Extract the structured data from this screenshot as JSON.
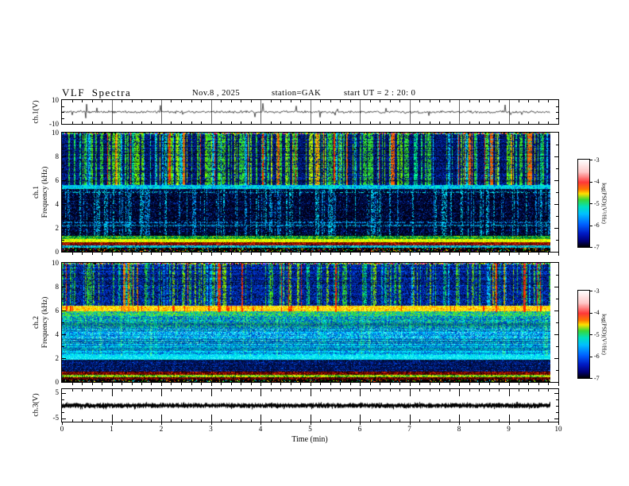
{
  "header": {
    "title": "VLF Spectra",
    "date": "Nov.8 , 2025",
    "station": "station=GAK",
    "start_ut": "start UT =  2 : 20: 0"
  },
  "axes": {
    "time_label": "Time  (min)",
    "time_ticks": [
      0,
      1,
      2,
      3,
      4,
      5,
      6,
      7,
      8,
      9,
      10
    ],
    "freq_ticks": [
      10,
      8,
      6,
      4,
      2,
      0
    ],
    "ch1v_ticks": [
      10,
      -10
    ],
    "ch3v_ticks": [
      5,
      -5
    ],
    "ch1_label": "ch.1(V)",
    "spec1_label_line1": "ch.1",
    "spec1_label_line2": "Frequency  (kHz)",
    "spec2_label_line1": "ch.2",
    "spec2_label_line2": "Frequency  (kHz)",
    "ch3_label": "ch.3(V)"
  },
  "colorbar": {
    "label": "log(PSD)(V²/Hz)",
    "ticks": [
      "-3",
      "-4",
      "-5",
      "-6",
      "-7"
    ],
    "gradient": [
      [
        "0%",
        "#ffffff"
      ],
      [
        "14%",
        "#ffc8c8"
      ],
      [
        "26%",
        "#ff3838"
      ],
      [
        "34%",
        "#ff7800"
      ],
      [
        "39%",
        "#ffe000"
      ],
      [
        "46%",
        "#38d838"
      ],
      [
        "54%",
        "#00e0c0"
      ],
      [
        "62%",
        "#00c0ff"
      ],
      [
        "74%",
        "#0060ff"
      ],
      [
        "85%",
        "#0018c0"
      ],
      [
        "93%",
        "#000078"
      ],
      [
        "100%",
        "#000000"
      ]
    ]
  },
  "chart_data": [
    {
      "type": "line",
      "channel": "ch.1(V)",
      "xlabel": "Time (min)",
      "xlim": [
        0,
        10
      ],
      "ylim": [
        -10,
        10
      ],
      "data_end_min": 9.84,
      "description": "broadband noise around 0 V, ~±1.5 V, with sparse spikes up to ~±8 V",
      "noise_v": 0.9,
      "seed": 7
    },
    {
      "type": "heatmap",
      "channel": "ch.1",
      "ylabel": "Frequency (kHz)",
      "ylim": [
        0,
        10
      ],
      "xlim": [
        0,
        10
      ],
      "zlabel": "log(PSD)(V²/Hz)",
      "zlim": [
        -7,
        -3
      ],
      "seed": 42,
      "carry": 0.38,
      "bands": [
        {
          "f": [
            9.87,
            10.01
          ],
          "colors": [
            [
              "#ff4000",
              1
            ],
            [
              "#ffe000",
              1
            ],
            [
              "#30d030",
              1
            ],
            [
              "#00d0ff",
              1
            ],
            [
              "#2040ff",
              1
            ],
            [
              "#000000",
              1.5
            ],
            [
              "#ff00ff",
              0.5
            ]
          ]
        },
        {
          "f": [
            5.62,
            9.87
          ],
          "rowmod": true,
          "colors": [
            [
              "#001878",
              5
            ],
            [
              "#0030c0",
              2
            ],
            [
              "#000428",
              3
            ]
          ]
        },
        {
          "f": [
            5.27,
            5.62
          ],
          "colors": [
            [
              "#00e0e0",
              4.5
            ],
            [
              "#00b4ff",
              2.5
            ],
            [
              "#00ffb4",
              1.5
            ],
            [
              "#0050e0",
              1.5
            ]
          ]
        },
        {
          "f": [
            1.32,
            5.27
          ],
          "rowmod": true,
          "colors": [
            [
              "#000014",
              5
            ],
            [
              "#000a3c",
              3
            ],
            [
              "#001e82",
              1.6
            ],
            [
              "#0050d2",
              0.4
            ]
          ]
        },
        {
          "f": [
            1.05,
            1.32
          ],
          "colors": [
            [
              "#00c050",
              3
            ],
            [
              "#008c3c",
              2.5
            ],
            [
              "#004020",
              2
            ],
            [
              "#96e000",
              2.5
            ]
          ]
        },
        {
          "f": [
            0.78,
            1.05
          ],
          "colors": [
            [
              "#ffff00",
              4
            ],
            [
              "#d2ff00",
              3
            ],
            [
              "#8ce000",
              2
            ],
            [
              "#ffb400",
              1
            ]
          ]
        },
        {
          "f": [
            0.55,
            0.78
          ],
          "colors": [
            [
              "#820000",
              4.5
            ],
            [
              "#b41e00",
              2.5
            ],
            [
              "#320000",
              2
            ],
            [
              "#ff4600",
              1
            ]
          ]
        },
        {
          "f": [
            0.33,
            0.55
          ],
          "colors": [
            [
              "#00d2d2",
              4
            ],
            [
              "#00a0e0",
              2.5
            ],
            [
              "#003c8c",
              2
            ],
            [
              "#46ffd2",
              1.5
            ]
          ]
        },
        {
          "f": [
            -0.01,
            0.33
          ],
          "colors": [
            [
              "#000000",
              8
            ],
            [
              "#ff3200",
              0.5
            ],
            [
              "#ffe000",
              0.5
            ],
            [
              "#00e000",
              0.4
            ],
            [
              "#00c8ff",
              0.4
            ],
            [
              "#3c00aa",
              0.4
            ]
          ]
        }
      ],
      "streaks": [
        {
          "f": [
            5.62,
            9.92
          ],
          "density": 0.5,
          "fill": 0.72,
          "palette": [
            [
              "#2ed22e",
              4.5
            ],
            [
              "#64e600",
              1.5
            ],
            [
              "#00e682",
              1.5
            ],
            [
              "#aaf000",
              1
            ],
            [
              "#00c8ff",
              1.5
            ]
          ]
        },
        {
          "f": [
            5.62,
            9.92
          ],
          "density": 0.05,
          "fill": 0.8,
          "palette": [
            [
              "#ff6400",
              2
            ],
            [
              "#ff2800",
              2
            ],
            [
              "#ffaa00",
              1
            ]
          ]
        },
        {
          "f": [
            1.32,
            5.27
          ],
          "density": 0.3,
          "fill": 0.45,
          "palette": [
            [
              "#00c8e6",
              3
            ],
            [
              "#0096e6",
              2
            ]
          ]
        }
      ],
      "hlines": [
        {
          "f": 2.2,
          "color": "#00b4e6",
          "fill": 0.55
        },
        {
          "f": 2.45,
          "color": "#0096e0",
          "fill": 0.4
        },
        {
          "f": 5.02,
          "color": "#00c8e6",
          "fill": 0.3
        }
      ]
    },
    {
      "type": "heatmap",
      "channel": "ch.2",
      "ylabel": "Frequency (kHz)",
      "ylim": [
        0,
        10
      ],
      "xlim": [
        0,
        10
      ],
      "zlabel": "log(PSD)(V²/Hz)",
      "zlim": [
        -7,
        -3
      ],
      "seed": 77,
      "carry": 0.35,
      "bands": [
        {
          "f": [
            9.87,
            10.01
          ],
          "colors": [
            [
              "#ff4000",
              1
            ],
            [
              "#ffe000",
              1
            ],
            [
              "#30d030",
              1
            ],
            [
              "#00d0ff",
              1
            ],
            [
              "#2040ff",
              1
            ],
            [
              "#000000",
              1.5
            ],
            [
              "#ff00ff",
              0.5
            ]
          ]
        },
        {
          "f": [
            6.42,
            9.87
          ],
          "rowmod": true,
          "colors": [
            [
              "#0022aa",
              4.5
            ],
            [
              "#003cd2",
              2
            ],
            [
              "#000a32",
              3
            ],
            [
              "#0064e6",
              0.8
            ]
          ]
        },
        {
          "f": [
            5.95,
            6.42
          ],
          "colors": [
            [
              "#ffe000",
              4
            ],
            [
              "#ffff46",
              2
            ],
            [
              "#ffaa00",
              2.5
            ],
            [
              "#ff6400",
              1
            ],
            [
              "#c8ff00",
              0.8
            ]
          ]
        },
        {
          "f": [
            5.5,
            5.95
          ],
          "colors": [
            [
              "#3ce03c",
              3
            ],
            [
              "#a0f000",
              1.5
            ],
            [
              "#00d296",
              2
            ],
            [
              "#00a0ff",
              1
            ],
            [
              "#0064d2",
              1.5
            ]
          ]
        },
        {
          "f": [
            4.55,
            5.5
          ],
          "rowmod": true,
          "colors": [
            [
              "#0046c8",
              3.5
            ],
            [
              "#00c882",
              2
            ],
            [
              "#3ce064",
              1.8
            ],
            [
              "#00b4e6",
              1.7
            ]
          ]
        },
        {
          "f": [
            3.15,
            4.55
          ],
          "rowmod": true,
          "colors": [
            [
              "#00c8e6",
              3
            ],
            [
              "#0082e6",
              2.8
            ],
            [
              "#0046b4",
              2
            ],
            [
              "#64ffe6",
              1.2
            ]
          ]
        },
        {
          "f": [
            2.25,
            3.15
          ],
          "rowmod": true,
          "colors": [
            [
              "#00d2e6",
              2.8
            ],
            [
              "#0096e6",
              2.8
            ],
            [
              "#0050c8",
              2.2
            ],
            [
              "#00ffff",
              1.2
            ]
          ]
        },
        {
          "f": [
            1.85,
            2.25
          ],
          "colors": [
            [
              "#00e6e6",
              4.5
            ],
            [
              "#00c8ff",
              2.5
            ],
            [
              "#46ffff",
              2
            ]
          ]
        },
        {
          "f": [
            0.85,
            1.85
          ],
          "rowmod": true,
          "colors": [
            [
              "#000a32",
              4
            ],
            [
              "#001464",
              3
            ],
            [
              "#0028a0",
              2.2
            ],
            [
              "#0050e6",
              0.8
            ]
          ]
        },
        {
          "f": [
            0.6,
            0.85
          ],
          "colors": [
            [
              "#640000",
              4
            ],
            [
              "#a01400",
              2.5
            ],
            [
              "#1e0000",
              2.5
            ],
            [
              "#ff3200",
              1
            ]
          ]
        },
        {
          "f": [
            0.38,
            0.6
          ],
          "colors": [
            [
              "#a0e600",
              3
            ],
            [
              "#ffe000",
              2.5
            ],
            [
              "#46c846",
              2.5
            ],
            [
              "#006400",
              2
            ]
          ]
        },
        {
          "f": [
            0.2,
            0.38
          ],
          "colors": [
            [
              "#6e0000",
              4.5
            ],
            [
              "#280000",
              3
            ],
            [
              "#c82000",
              1.5
            ],
            [
              "#000000",
              1
            ]
          ]
        },
        {
          "f": [
            -0.01,
            0.2
          ],
          "colors": [
            [
              "#000000",
              8
            ],
            [
              "#ff3200",
              0.4
            ],
            [
              "#ffe000",
              0.4
            ],
            [
              "#00e000",
              0.4
            ],
            [
              "#00c8ff",
              0.4
            ]
          ]
        }
      ],
      "streaks": [
        {
          "f": [
            6.42,
            9.92
          ],
          "density": 0.4,
          "fill": 0.62,
          "palette": [
            [
              "#2ed22e",
              3
            ],
            [
              "#00d282",
              1.5
            ],
            [
              "#82e600",
              1.5
            ],
            [
              "#00c8ff",
              1
            ]
          ]
        },
        {
          "f": [
            5.9,
            9.92
          ],
          "density": 0.045,
          "fill": 0.85,
          "palette": [
            [
              "#ff3200",
              2
            ],
            [
              "#ff7800",
              1
            ]
          ]
        },
        {
          "f": [
            2.2,
            5.5
          ],
          "density": 0.2,
          "fill": 0.38,
          "palette": [
            [
              "#00e6c8",
              2
            ],
            [
              "#46ff8c",
              1
            ]
          ]
        },
        {
          "f": [
            5.95,
            6.42
          ],
          "density": 0.08,
          "fill": 0.9,
          "palette": [
            [
              "#ff2800",
              1
            ]
          ]
        }
      ],
      "hlines": []
    },
    {
      "type": "line",
      "channel": "ch.3(V)",
      "xlim": [
        0,
        10
      ],
      "ylim": [
        -5,
        5
      ],
      "data_end_min": 9.84,
      "description": "dense flat noisy trace near 0 V (~±1 V thick black band)",
      "seed": 9
    }
  ]
}
